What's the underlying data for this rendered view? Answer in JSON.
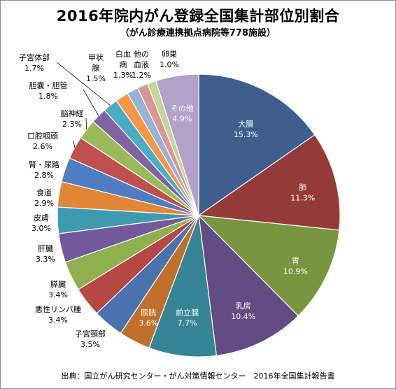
{
  "chart_data": {
    "type": "pie",
    "title": "2016年院内がん登録全国集計部位別割合",
    "subtitle": "（がん診療連携拠点病院等778施設）",
    "source": "出典：国立がん研究センター・がん対策情報センター　2016年全国集計報告書",
    "slices": [
      {
        "label": "大腸",
        "value": 15.3,
        "value_label": "15.3%",
        "color": "#3E5F8E"
      },
      {
        "label": "肺",
        "value": 11.3,
        "value_label": "11.3%",
        "color": "#943B39"
      },
      {
        "label": "胃",
        "value": 10.9,
        "value_label": "10.9%",
        "color": "#78963F"
      },
      {
        "label": "乳房",
        "value": 10.4,
        "value_label": "10.4%",
        "color": "#634B84"
      },
      {
        "label": "前立腺",
        "value": 7.7,
        "value_label": "7.7%",
        "color": "#368496"
      },
      {
        "label": "膀胱",
        "value": 3.6,
        "value_label": "3.6%",
        "color": "#C06F2C"
      },
      {
        "label": "子宮頸部",
        "value": 3.5,
        "value_label": "3.5%",
        "color": "#4A73AE"
      },
      {
        "label": "悪性リンパ腫",
        "value": 3.4,
        "value_label": "3.4%",
        "color": "#B54744"
      },
      {
        "label": "膵臓",
        "value": 3.4,
        "value_label": "3.4%",
        "color": "#8EB04E"
      },
      {
        "label": "肝臓",
        "value": 3.3,
        "value_label": "3.3%",
        "color": "#72599B"
      },
      {
        "label": "皮膚",
        "value": 3.0,
        "value_label": "3.0%",
        "color": "#3E9AAF"
      },
      {
        "label": "食道",
        "value": 2.9,
        "value_label": "2.9%",
        "color": "#E18637"
      },
      {
        "label": "腎・尿路",
        "value": 2.8,
        "value_label": "2.8%",
        "color": "#4F7DC1"
      },
      {
        "label": "口腔咽頭",
        "value": 2.6,
        "value_label": "2.6%",
        "color": "#C0504D"
      },
      {
        "label": "脳神経",
        "value": 2.3,
        "value_label": "2.3%",
        "color": "#9BBB59"
      },
      {
        "label": "胆嚢・胆管",
        "value": 1.8,
        "value_label": "1.8%",
        "color": "#8064A2"
      },
      {
        "label": "子宮体部",
        "value": 1.7,
        "value_label": "1.7%",
        "color": "#4BACC6"
      },
      {
        "label": "甲状腺",
        "value": 1.5,
        "value_label": "1.5%",
        "color": "#F79646"
      },
      {
        "label": "白血病",
        "value": 1.3,
        "value_label": "1.3%",
        "color": "#95B3D7"
      },
      {
        "label": "他の血液",
        "value": 1.2,
        "value_label": "1.2%",
        "color": "#D99694"
      },
      {
        "label": "卵巣",
        "value": 1.0,
        "value_label": "1.0%",
        "color": "#C3D69B"
      },
      {
        "label": "その他",
        "value": 4.9,
        "value_label": "4.9%",
        "color": "#B2A2C7"
      }
    ]
  }
}
